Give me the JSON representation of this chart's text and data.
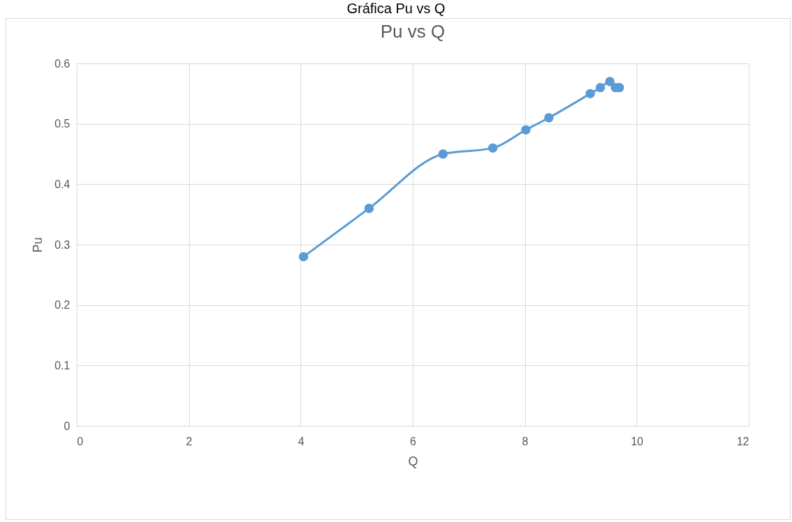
{
  "chart_data": {
    "type": "line",
    "title": "Pu vs Q",
    "xlabel": "Q",
    "ylabel": "Pu",
    "annotations": [
      "Gráfica Pu vs Q"
    ],
    "series": [
      {
        "color": "#5b9bd5",
        "x": [
          4.05,
          5.22,
          6.54,
          7.43,
          8.02,
          8.43,
          9.17,
          9.35,
          9.52,
          9.62,
          9.69
        ],
        "values": [
          0.28,
          0.36,
          0.45,
          0.46,
          0.49,
          0.51,
          0.55,
          0.56,
          0.57,
          0.56,
          0.56
        ]
      }
    ],
    "xlim": [
      0,
      12
    ],
    "xticks": [
      0,
      2,
      4,
      6,
      8,
      10,
      12
    ],
    "ylim": [
      0,
      0.6
    ],
    "yticks": [
      0,
      0.1,
      0.2,
      0.3,
      0.4,
      0.5,
      0.6
    ],
    "grid": true,
    "marker": "circle",
    "line_style": "solid"
  }
}
